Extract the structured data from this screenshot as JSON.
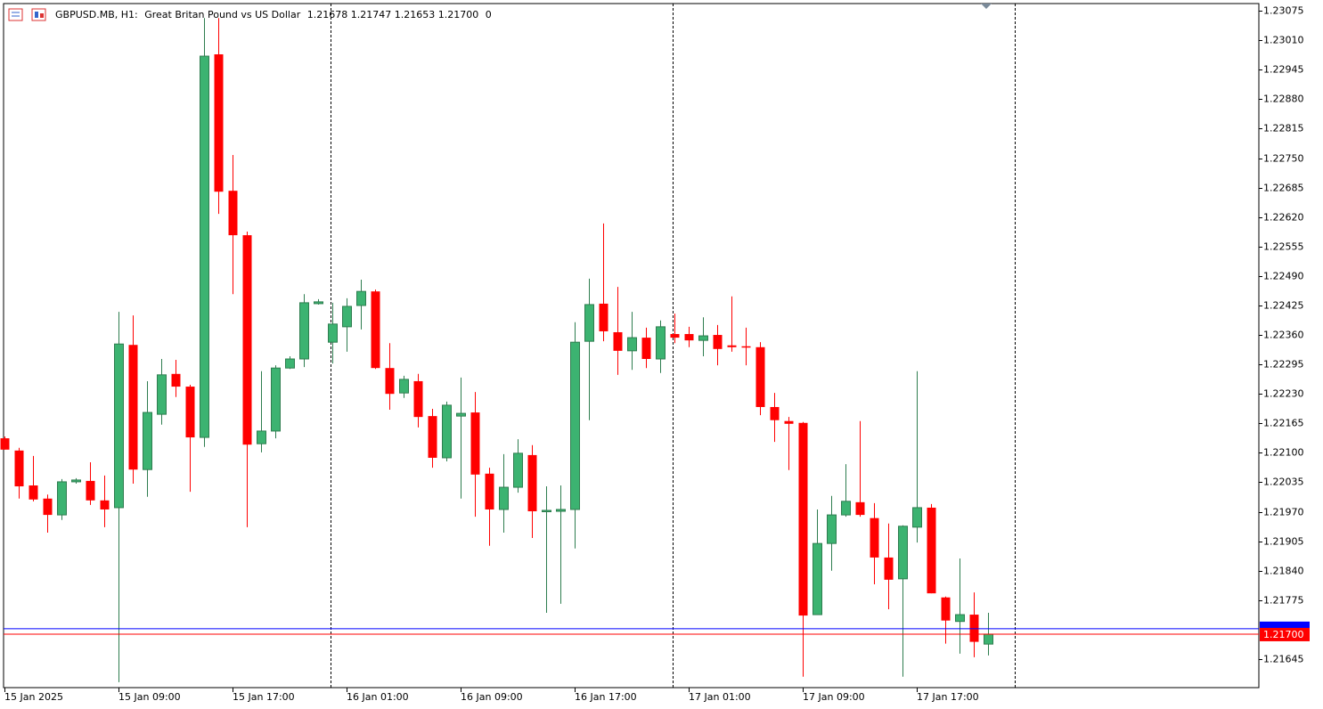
{
  "header": {
    "symbol": "GBPUSD.MB, H1:",
    "description": "Great Britan Pound vs US Dollar",
    "ohlc_labels": [
      "1.21678",
      "1.21747",
      "1.21653",
      "1.21700"
    ],
    "volume": "0"
  },
  "chart_data": {
    "type": "candlestick",
    "categories": [
      "15 Jan 2025",
      null,
      null,
      null,
      null,
      null,
      null,
      null,
      "15 Jan 09:00",
      null,
      null,
      null,
      null,
      null,
      null,
      null,
      "15 Jan 17:00",
      null,
      null,
      null,
      null,
      null,
      null,
      null,
      "16 Jan 01:00",
      null,
      null,
      null,
      null,
      null,
      null,
      null,
      "16 Jan 09:00",
      null,
      null,
      null,
      null,
      null,
      null,
      null,
      "16 Jan 17:00",
      null,
      null,
      null,
      null,
      null,
      null,
      null,
      "17 Jan 01:00",
      null,
      null,
      null,
      null,
      null,
      null,
      null,
      "17 Jan 09:00",
      null,
      null,
      null,
      null,
      null,
      null,
      null,
      "17 Jan 17:00",
      null,
      null,
      null,
      null,
      null
    ],
    "open": [
      1.22132,
      1.22105,
      1.22028,
      1.21999,
      1.21963,
      1.22036,
      1.22038,
      1.21995,
      1.21979,
      1.22338,
      1.22063,
      1.22185,
      1.22274,
      1.22246,
      1.22134,
      1.22979,
      1.22678,
      1.2258,
      1.2212,
      1.22148,
      1.22287,
      1.22307,
      1.22429,
      1.22344,
      1.22378,
      1.22425,
      1.22456,
      1.22287,
      1.22232,
      1.22258,
      1.22181,
      1.22089,
      1.22181,
      1.22189,
      1.22054,
      1.21975,
      1.22024,
      1.22095,
      1.21971,
      1.21971,
      1.21975,
      1.22346,
      1.22429,
      1.22366,
      1.22325,
      1.22354,
      1.22307,
      1.22362,
      1.22362,
      1.22348,
      1.2236,
      1.22337,
      1.22335,
      1.22333,
      1.22201,
      1.2217,
      1.22166,
      1.21743,
      1.219,
      1.21963,
      1.21991,
      1.21956,
      1.21869,
      1.21822,
      1.21936,
      1.21979,
      1.21781,
      1.21728,
      1.21743,
      1.21678
    ],
    "high": [
      1.22136,
      1.22111,
      1.22093,
      1.22008,
      1.22042,
      1.22044,
      1.22079,
      1.2205,
      1.22411,
      1.22403,
      1.22258,
      1.22307,
      1.22305,
      1.2225,
      1.23059,
      1.23059,
      1.22757,
      1.22588,
      1.2228,
      1.22293,
      1.22313,
      1.2245,
      1.22439,
      1.22431,
      1.22441,
      1.22482,
      1.2246,
      1.22342,
      1.2227,
      1.22274,
      1.22197,
      1.22213,
      1.22266,
      1.22234,
      1.22067,
      1.22097,
      1.2213,
      1.22117,
      1.22026,
      1.22028,
      1.22388,
      1.22484,
      1.22606,
      1.22466,
      1.22411,
      1.22376,
      1.22392,
      1.22407,
      1.22378,
      1.22399,
      1.22382,
      1.22445,
      1.22376,
      1.22344,
      1.22232,
      1.22179,
      1.22168,
      1.21975,
      1.22005,
      1.22075,
      1.2217,
      1.21989,
      1.21944,
      1.2194,
      1.2228,
      1.21987,
      1.21783,
      1.21867,
      1.21792,
      1.21747
    ],
    "low": [
      1.22107,
      1.21999,
      1.21993,
      1.21924,
      1.21952,
      1.22032,
      1.21985,
      1.21936,
      1.21594,
      1.22032,
      1.22003,
      1.22162,
      1.22223,
      1.22014,
      1.22113,
      1.22627,
      1.2245,
      1.21936,
      1.22101,
      1.22132,
      1.22285,
      1.22289,
      1.22427,
      1.22297,
      1.22323,
      1.22372,
      1.22285,
      1.22195,
      1.22221,
      1.22156,
      1.22067,
      1.22081,
      1.21999,
      1.21959,
      1.21895,
      1.21924,
      1.22012,
      1.21912,
      1.21747,
      1.21767,
      1.21889,
      1.22172,
      1.22346,
      1.22272,
      1.22283,
      1.22287,
      1.22276,
      1.22342,
      1.22333,
      1.22313,
      1.22293,
      1.22323,
      1.22293,
      1.22183,
      1.22124,
      1.22062,
      1.21606,
      1.21743,
      1.2184,
      1.21959,
      1.21959,
      1.2181,
      1.21755,
      1.21606,
      1.21902,
      1.2179,
      1.21679,
      1.21657,
      1.21649,
      1.21653
    ],
    "close": [
      1.22107,
      1.22026,
      1.21997,
      1.21963,
      1.22036,
      1.2204,
      1.21995,
      1.21975,
      1.2234,
      1.22063,
      1.22189,
      1.22272,
      1.22246,
      1.22134,
      1.22975,
      1.22676,
      1.2258,
      1.22118,
      1.22148,
      1.22287,
      1.22307,
      1.22431,
      1.22433,
      1.22384,
      1.22423,
      1.22456,
      1.22287,
      1.2223,
      1.22262,
      1.22179,
      1.22089,
      1.22205,
      1.22187,
      1.22052,
      1.21975,
      1.22024,
      1.22099,
      1.21971,
      1.21973,
      1.21975,
      1.22344,
      1.22427,
      1.22368,
      1.22325,
      1.22354,
      1.22307,
      1.22378,
      1.22354,
      1.22348,
      1.22358,
      1.22329,
      1.22333,
      1.22333,
      1.22201,
      1.22172,
      1.22164,
      1.21741,
      1.219,
      1.21963,
      1.21993,
      1.21963,
      1.21869,
      1.2182,
      1.21938,
      1.21979,
      1.2179,
      1.2173,
      1.21743,
      1.21683,
      1.217
    ],
    "up_color": "#3cb371",
    "up_border": "#2e7d4f",
    "down_color": "#ff0000",
    "ylim": [
      1.21582,
      1.23091
    ],
    "yticks": [
      1.23075,
      {
        "value": 1.2301,
        "label": "1.23010"
      },
      1.22945,
      {
        "value": 1.2288,
        "label": "1.22880"
      },
      1.22815,
      {
        "value": 1.2275,
        "label": "1.22750"
      },
      1.22685,
      {
        "value": 1.2262,
        "label": "1.22620"
      },
      1.22555,
      {
        "value": 1.2249,
        "label": "1.22490"
      },
      1.22425,
      {
        "value": 1.2236,
        "label": "1.22360"
      },
      1.22295,
      {
        "value": 1.2223,
        "label": "1.22230"
      },
      1.22165,
      {
        "value": 1.221,
        "label": "1.22100"
      },
      1.22035,
      {
        "value": 1.2197,
        "label": "1.21970"
      },
      1.21905,
      {
        "value": 1.2184,
        "label": "1.21840"
      },
      1.21775,
      1.21645
    ],
    "bid": {
      "value": 1.217,
      "label": "1.21700"
    },
    "bid_color": "#ff0000",
    "ask": 1.21712,
    "ask_color": "#0000ff"
  }
}
